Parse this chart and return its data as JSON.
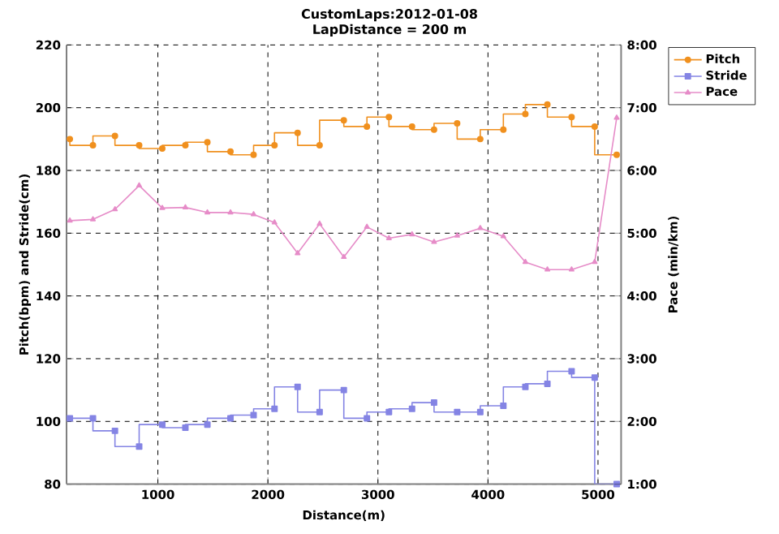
{
  "chart_data": {
    "type": "step",
    "title": "CustomLaps:2012-01-08",
    "subtitle": "LapDistance = 200 m",
    "xlabel": "Distance(m)",
    "ylabel": "Pitch(bpm) and Stride(cm)",
    "y2label": "Pace (min/km)",
    "x": [
      200,
      410,
      610,
      830,
      1040,
      1250,
      1450,
      1660,
      1870,
      2060,
      2270,
      2470,
      2690,
      2900,
      3100,
      3310,
      3510,
      3720,
      3930,
      4140,
      4340,
      4540,
      4760,
      4970,
      5170
    ],
    "series": [
      {
        "name": "Pitch",
        "marker": "circle",
        "color": "#f0901e",
        "values": [
          190,
          188,
          191,
          188,
          187,
          188,
          189,
          186,
          185,
          188,
          192,
          188,
          196,
          194,
          197,
          194,
          193,
          195,
          190,
          193,
          198,
          201,
          197,
          194,
          185
        ]
      },
      {
        "name": "Stride",
        "marker": "square",
        "color": "#8484e4",
        "values": [
          101,
          101,
          97,
          92,
          99,
          98,
          99,
          101,
          102,
          104,
          111,
          103,
          110,
          101,
          103,
          104,
          106,
          103,
          103,
          105,
          111,
          112,
          116,
          114,
          80
        ]
      },
      {
        "name": "Pace",
        "type": "line",
        "marker": "triangle",
        "axis": "y2",
        "color": "#e68cc8",
        "values": [
          5.2,
          5.22,
          5.38,
          5.76,
          5.4,
          5.41,
          5.33,
          5.33,
          5.3,
          5.17,
          4.68,
          5.15,
          4.62,
          5.1,
          4.92,
          4.98,
          4.86,
          4.96,
          5.08,
          4.95,
          4.54,
          4.42,
          4.42,
          4.54,
          6.84
        ]
      }
    ],
    "xlim": [
      170,
      5210
    ],
    "xticks": [
      1000,
      2000,
      3000,
      4000,
      5000
    ],
    "ylim": [
      80,
      220
    ],
    "yticks": [
      80,
      100,
      120,
      140,
      160,
      180,
      200,
      220
    ],
    "y2lim": [
      1,
      8
    ],
    "y2ticks": [
      {
        "value": 1,
        "label": "1:00"
      },
      {
        "value": 2,
        "label": "2:00"
      },
      {
        "value": 3,
        "label": "3:00"
      },
      {
        "value": 4,
        "label": "4:00"
      },
      {
        "value": 5,
        "label": "5:00"
      },
      {
        "value": 6,
        "label": "6:00"
      },
      {
        "value": 7,
        "label": "7:00"
      },
      {
        "value": 8,
        "label": "8:00"
      }
    ],
    "grid": true,
    "legend": "right"
  }
}
